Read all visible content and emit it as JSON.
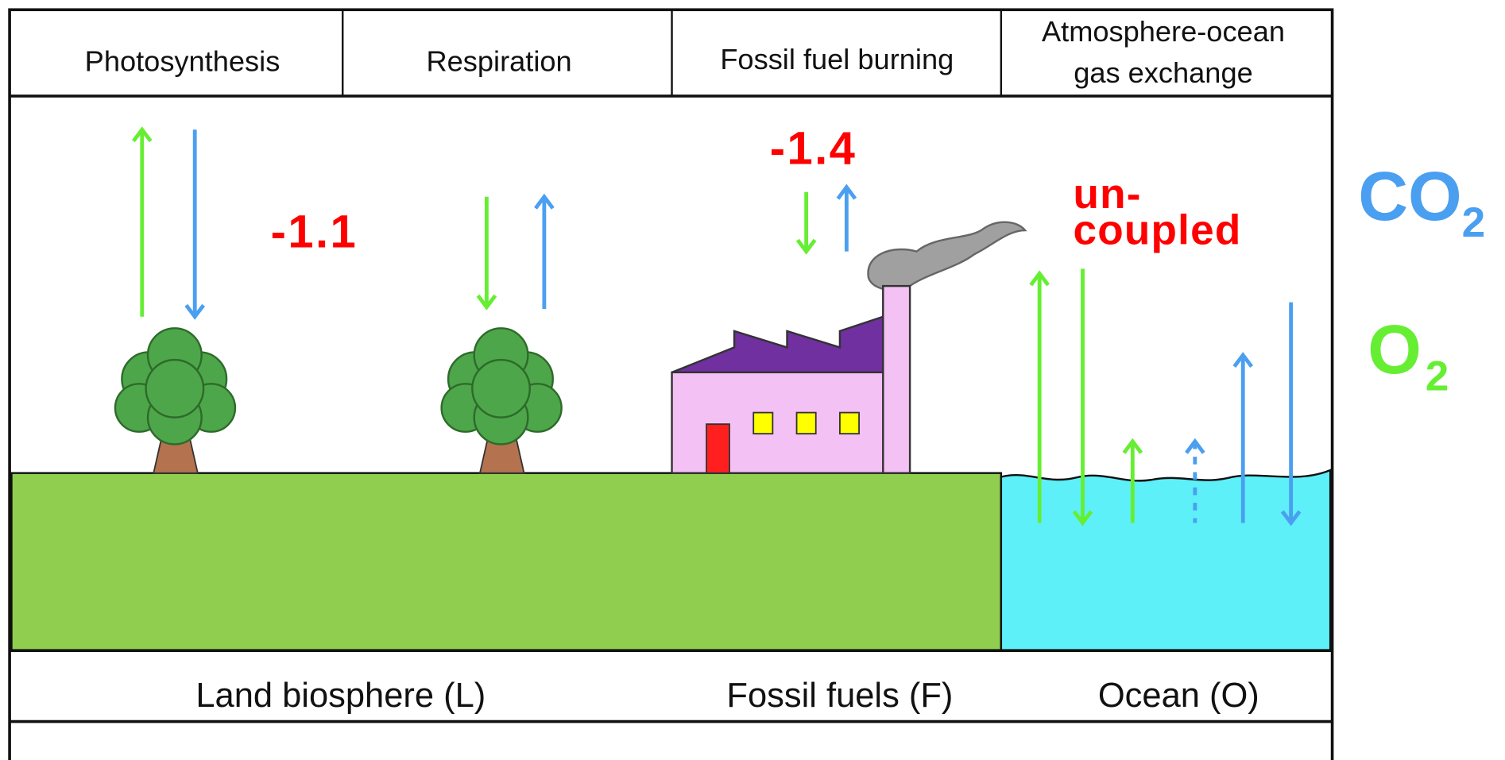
{
  "header": {
    "cells": [
      {
        "lines": [
          "Photosynthesis"
        ]
      },
      {
        "lines": [
          "Respiration"
        ]
      },
      {
        "lines": [
          "Fossil fuel burning"
        ]
      },
      {
        "lines": [
          "Atmosphere-ocean",
          "gas exchange"
        ]
      }
    ]
  },
  "ratios": {
    "land": "-1.1",
    "fossil": "-1.4",
    "ocean": [
      "un-",
      "coupled"
    ]
  },
  "legend": {
    "co2": {
      "base": "CO",
      "sub": "2"
    },
    "o2": {
      "base": "O",
      "sub": "2"
    }
  },
  "reservoirs": [
    "Land biosphere (L)",
    "Fossil fuels (F)",
    "Ocean (O)"
  ]
}
